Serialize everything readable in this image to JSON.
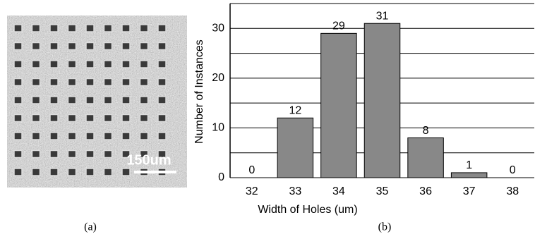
{
  "image_panel": {
    "scale_label": "150um",
    "caption": "(a)"
  },
  "chart_data": {
    "type": "bar",
    "caption": "(b)",
    "x_label": "Width of Holes (um)",
    "y_label": "Number of Instances",
    "categories": [
      "32",
      "33",
      "34",
      "35",
      "36",
      "37",
      "38"
    ],
    "values": [
      0,
      12,
      29,
      31,
      8,
      1,
      0
    ],
    "color": "#888888",
    "ylim": [
      0,
      35
    ],
    "yticks": [
      0,
      10,
      20,
      30
    ],
    "yminorticks": [
      5,
      15,
      25,
      35
    ],
    "grid": true
  }
}
